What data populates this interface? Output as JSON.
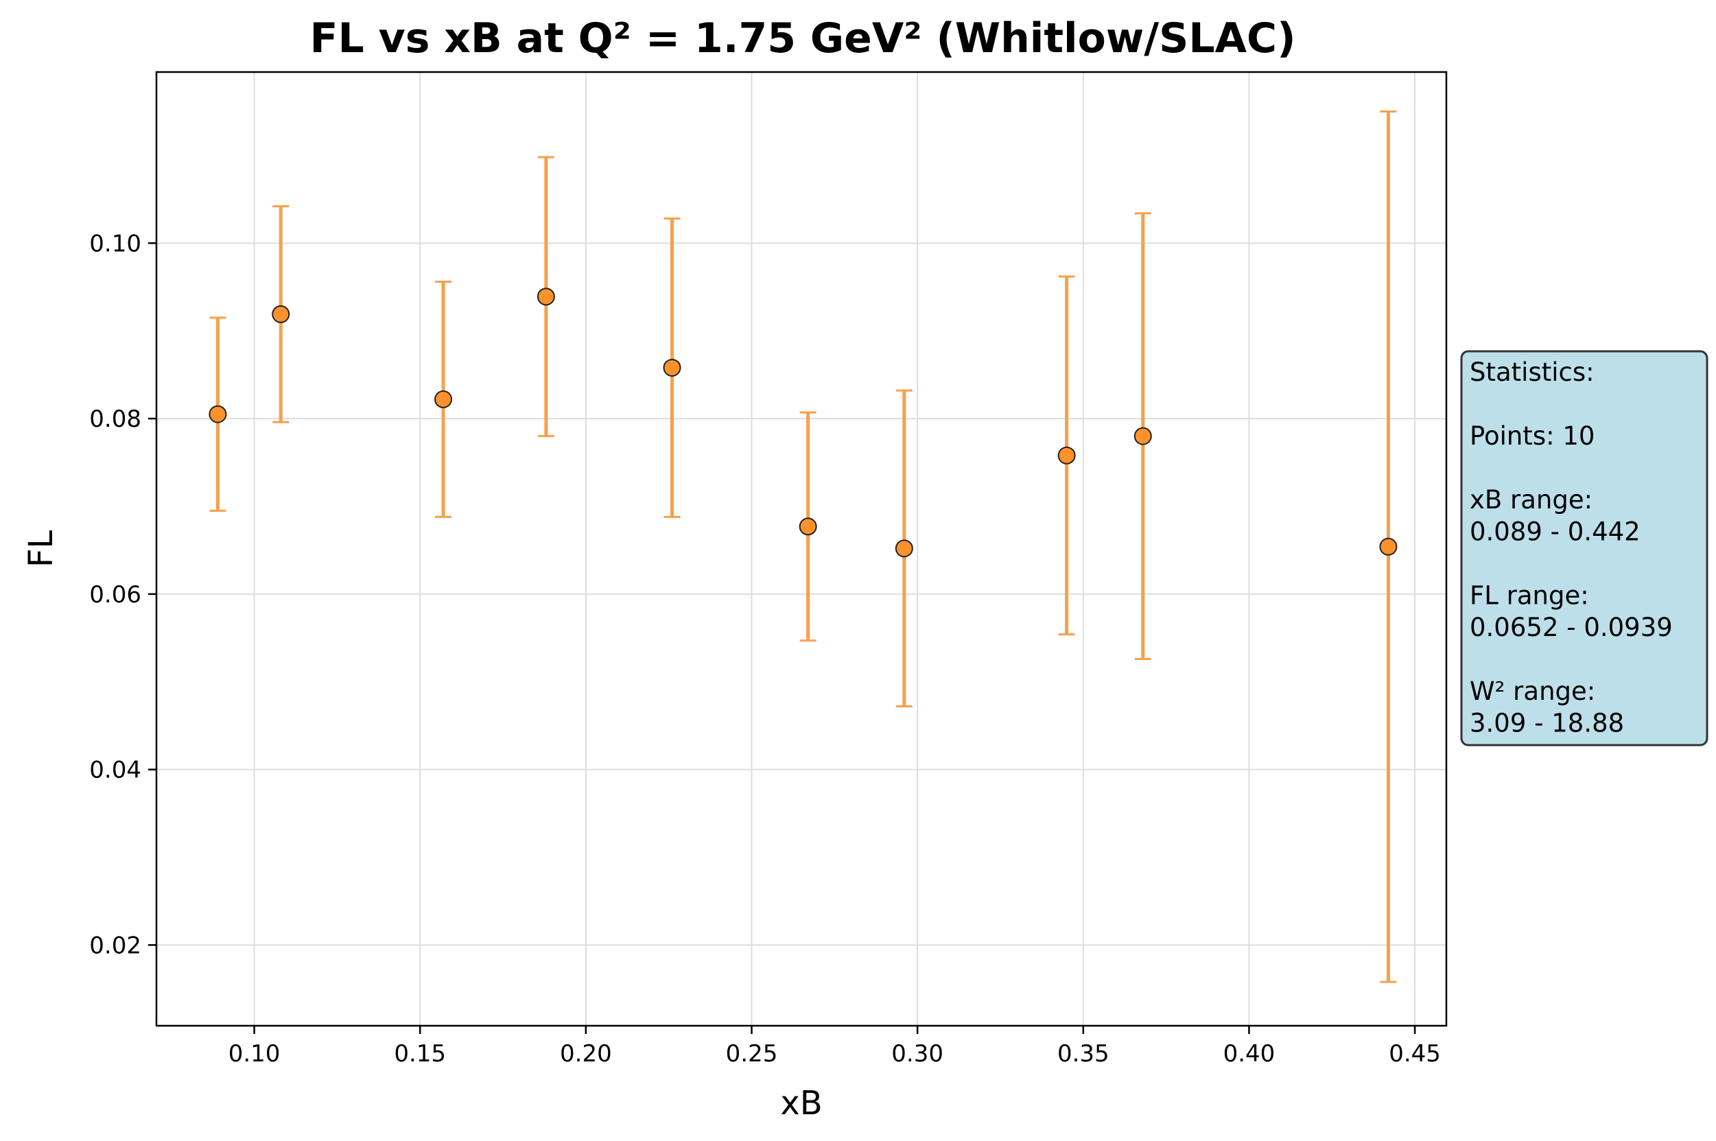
{
  "chart_data": {
    "type": "scatter",
    "title": "FL vs xB at Q² = 1.75 GeV² (Whitlow/SLAC)",
    "xlabel": "xB",
    "ylabel": "FL",
    "xlim": [
      0.0705,
      0.4595
    ],
    "ylim": [
      0.0108,
      0.1195
    ],
    "xticks": [
      0.1,
      0.15,
      0.2,
      0.25,
      0.3,
      0.35,
      0.4,
      0.45
    ],
    "xtick_labels": [
      "0.10",
      "0.15",
      "0.20",
      "0.25",
      "0.30",
      "0.35",
      "0.40",
      "0.45"
    ],
    "yticks": [
      0.02,
      0.04,
      0.06,
      0.08,
      0.1
    ],
    "ytick_labels": [
      "0.02",
      "0.04",
      "0.06",
      "0.08",
      "0.10"
    ],
    "grid": true,
    "marker_color": "#ff922b",
    "errorbar_color": "#f7a04b",
    "points": [
      {
        "x": 0.089,
        "y": 0.0805,
        "err": 0.011
      },
      {
        "x": 0.108,
        "y": 0.0919,
        "err": 0.0123
      },
      {
        "x": 0.157,
        "y": 0.0822,
        "err": 0.0134
      },
      {
        "x": 0.188,
        "y": 0.0939,
        "err": 0.0159
      },
      {
        "x": 0.226,
        "y": 0.0858,
        "err": 0.017
      },
      {
        "x": 0.267,
        "y": 0.0677,
        "err": 0.013
      },
      {
        "x": 0.296,
        "y": 0.0652,
        "err": 0.018
      },
      {
        "x": 0.345,
        "y": 0.0758,
        "err": 0.0204
      },
      {
        "x": 0.368,
        "y": 0.078,
        "err": 0.0254
      },
      {
        "x": 0.442,
        "y": 0.0654,
        "err": 0.0496
      }
    ]
  },
  "stats_box": {
    "lines": [
      "Statistics:",
      "",
      "Points: 10",
      "",
      "xB range:",
      "0.089 - 0.442",
      "",
      "FL range:",
      "0.0652 - 0.0939",
      "",
      "W² range:",
      "3.09 - 18.88"
    ],
    "background": "#bddfea",
    "border": "#333333"
  }
}
